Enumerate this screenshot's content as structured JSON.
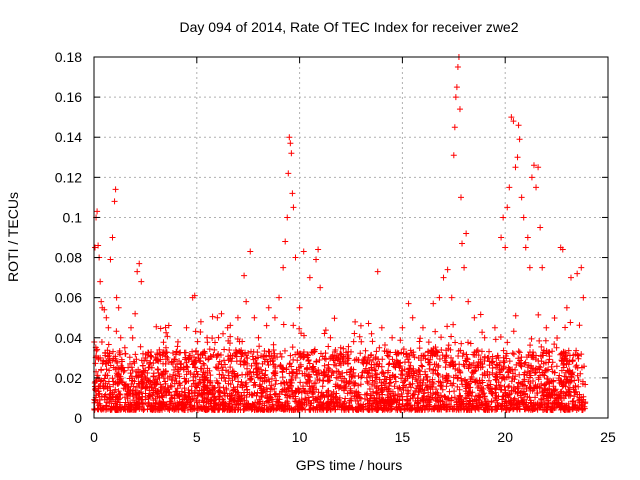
{
  "chart_data": {
    "type": "scatter",
    "title": "Day 094 of 2014, Rate Of TEC Index for receiver zwe2",
    "xlabel": "GPS time / hours",
    "ylabel": "ROTI / TECUs",
    "xlim": [
      0,
      25
    ],
    "ylim": [
      0,
      0.18
    ],
    "xticks": [
      0,
      5,
      10,
      15,
      20,
      25
    ],
    "xtick_labels": [
      "0",
      "5",
      "10",
      "15",
      "20",
      "25"
    ],
    "yticks": [
      0,
      0.02,
      0.04,
      0.06,
      0.08,
      0.1,
      0.12,
      0.14,
      0.16,
      0.18
    ],
    "ytick_labels": [
      "0",
      "0.02",
      "0.04",
      "0.06",
      "0.08",
      "0.1",
      "0.12",
      "0.14",
      "0.16",
      "0.18"
    ],
    "grid": true,
    "marker": "+",
    "color": "#ff0000",
    "series": [
      {
        "name": "ROTI",
        "points": [
          [
            0.05,
            0.085
          ],
          [
            0.1,
            0.1
          ],
          [
            0.15,
            0.103
          ],
          [
            0.2,
            0.086
          ],
          [
            0.25,
            0.08
          ],
          [
            0.3,
            0.068
          ],
          [
            0.35,
            0.058
          ],
          [
            0.4,
            0.055
          ],
          [
            0.5,
            0.054
          ],
          [
            0.6,
            0.05
          ],
          [
            0.7,
            0.045
          ],
          [
            0.8,
            0.079
          ],
          [
            0.9,
            0.09
          ],
          [
            1.0,
            0.108
          ],
          [
            1.05,
            0.114
          ],
          [
            1.1,
            0.06
          ],
          [
            1.2,
            0.055
          ],
          [
            1.3,
            0.04
          ],
          [
            1.5,
            0.035
          ],
          [
            1.8,
            0.045
          ],
          [
            2.0,
            0.052
          ],
          [
            2.1,
            0.073
          ],
          [
            2.2,
            0.077
          ],
          [
            2.3,
            0.068
          ],
          [
            2.5,
            0.03
          ],
          [
            3.0,
            0.03
          ],
          [
            3.5,
            0.035
          ],
          [
            4.0,
            0.033
          ],
          [
            4.5,
            0.045
          ],
          [
            4.8,
            0.06
          ],
          [
            4.9,
            0.061
          ],
          [
            5.2,
            0.048
          ],
          [
            5.5,
            0.04
          ],
          [
            6.0,
            0.05
          ],
          [
            6.2,
            0.052
          ],
          [
            6.5,
            0.045
          ],
          [
            7.0,
            0.05
          ],
          [
            7.3,
            0.071
          ],
          [
            7.4,
            0.058
          ],
          [
            7.6,
            0.083
          ],
          [
            7.8,
            0.05
          ],
          [
            8.0,
            0.04
          ],
          [
            8.5,
            0.055
          ],
          [
            8.8,
            0.05
          ],
          [
            9.0,
            0.06
          ],
          [
            9.2,
            0.075
          ],
          [
            9.3,
            0.088
          ],
          [
            9.4,
            0.1
          ],
          [
            9.45,
            0.122
          ],
          [
            9.5,
            0.14
          ],
          [
            9.55,
            0.137
          ],
          [
            9.6,
            0.132
          ],
          [
            9.65,
            0.112
          ],
          [
            9.7,
            0.105
          ],
          [
            9.8,
            0.08
          ],
          [
            10.0,
            0.055
          ],
          [
            10.2,
            0.083
          ],
          [
            10.5,
            0.07
          ],
          [
            10.8,
            0.079
          ],
          [
            10.9,
            0.084
          ],
          [
            11.0,
            0.065
          ],
          [
            11.5,
            0.04
          ],
          [
            12.0,
            0.035
          ],
          [
            12.5,
            0.033
          ],
          [
            13.0,
            0.038
          ],
          [
            13.5,
            0.042
          ],
          [
            13.8,
            0.073
          ],
          [
            14.0,
            0.045
          ],
          [
            14.5,
            0.04
          ],
          [
            15.0,
            0.045
          ],
          [
            15.3,
            0.057
          ],
          [
            15.5,
            0.05
          ],
          [
            16.0,
            0.045
          ],
          [
            16.5,
            0.057
          ],
          [
            16.8,
            0.06
          ],
          [
            17.0,
            0.07
          ],
          [
            17.2,
            0.074
          ],
          [
            17.4,
            0.06
          ],
          [
            17.5,
            0.131
          ],
          [
            17.55,
            0.145
          ],
          [
            17.6,
            0.16
          ],
          [
            17.65,
            0.165
          ],
          [
            17.7,
            0.175
          ],
          [
            17.75,
            0.18
          ],
          [
            17.8,
            0.154
          ],
          [
            17.85,
            0.11
          ],
          [
            17.9,
            0.087
          ],
          [
            18.0,
            0.075
          ],
          [
            18.1,
            0.092
          ],
          [
            18.2,
            0.058
          ],
          [
            18.5,
            0.05
          ],
          [
            19.0,
            0.04
          ],
          [
            19.5,
            0.045
          ],
          [
            19.8,
            0.09
          ],
          [
            19.9,
            0.1
          ],
          [
            20.0,
            0.085
          ],
          [
            20.1,
            0.105
          ],
          [
            20.2,
            0.115
          ],
          [
            20.3,
            0.15
          ],
          [
            20.4,
            0.148
          ],
          [
            20.5,
            0.125
          ],
          [
            20.6,
            0.13
          ],
          [
            20.65,
            0.146
          ],
          [
            20.7,
            0.139
          ],
          [
            20.8,
            0.11
          ],
          [
            20.9,
            0.1
          ],
          [
            21.0,
            0.085
          ],
          [
            21.1,
            0.09
          ],
          [
            21.2,
            0.075
          ],
          [
            21.3,
            0.12
          ],
          [
            21.4,
            0.126
          ],
          [
            21.5,
            0.115
          ],
          [
            21.6,
            0.125
          ],
          [
            21.7,
            0.095
          ],
          [
            21.8,
            0.075
          ],
          [
            22.0,
            0.045
          ],
          [
            22.5,
            0.035
          ],
          [
            22.7,
            0.085
          ],
          [
            22.8,
            0.084
          ],
          [
            23.0,
            0.055
          ],
          [
            23.2,
            0.07
          ],
          [
            23.5,
            0.072
          ],
          [
            23.7,
            0.075
          ],
          [
            23.8,
            0.06
          ]
        ]
      }
    ]
  }
}
